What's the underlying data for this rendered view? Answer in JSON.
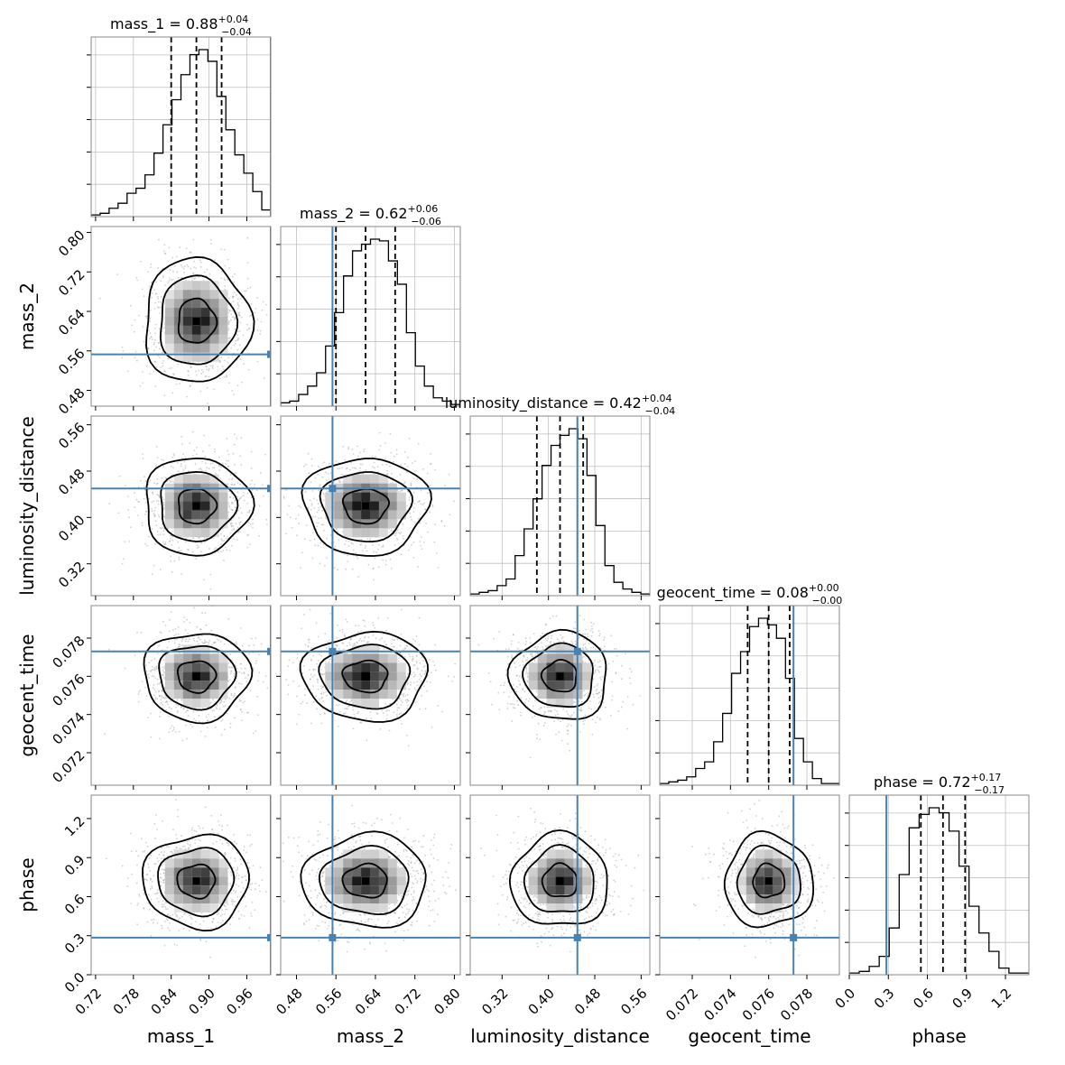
{
  "chart_data": {
    "type": "corner",
    "parameters": [
      "mass_1",
      "mass_2",
      "luminosity_distance",
      "geocent_time",
      "phase"
    ],
    "titles": [
      {
        "name": "mass_1",
        "value": "0.88",
        "plus": "+0.04",
        "minus": "−0.04"
      },
      {
        "name": "mass_2",
        "value": "0.62",
        "plus": "+0.06",
        "minus": "−0.06"
      },
      {
        "name": "luminosity_distance",
        "value": "0.42",
        "plus": "+0.04",
        "minus": "−0.04"
      },
      {
        "name": "geocent_time",
        "value": "0.08",
        "plus": "+0.00",
        "minus": "−0.00"
      },
      {
        "name": "phase",
        "value": "0.72",
        "plus": "+0.17",
        "minus": "−0.17"
      }
    ],
    "ranges": [
      [
        0.713,
        0.998
      ],
      [
        0.448,
        0.812
      ],
      [
        0.265,
        0.575
      ],
      [
        0.0703,
        0.0797
      ],
      [
        0.0,
        1.38
      ]
    ],
    "ticks": [
      [
        "0.72",
        "0.78",
        "0.84",
        "0.90",
        "0.96"
      ],
      [
        "0.48",
        "0.56",
        "0.64",
        "0.72",
        "0.80"
      ],
      [
        "0.32",
        "0.40",
        "0.48",
        "0.56"
      ],
      [
        "0.072",
        "0.074",
        "0.076",
        "0.078"
      ],
      [
        "0.0",
        "0.3",
        "0.6",
        "0.9",
        "1.2"
      ]
    ],
    "tick_values": [
      [
        0.72,
        0.78,
        0.84,
        0.9,
        0.96
      ],
      [
        0.48,
        0.56,
        0.64,
        0.72,
        0.8
      ],
      [
        0.32,
        0.4,
        0.48,
        0.56
      ],
      [
        0.072,
        0.074,
        0.076,
        0.078
      ],
      [
        0.0,
        0.3,
        0.6,
        0.9,
        1.2
      ]
    ],
    "truths": [
      0.998,
      0.553,
      0.45,
      0.0773,
      0.285
    ],
    "medians": [
      0.88,
      0.62,
      0.42,
      0.076,
      0.72
    ],
    "quantiles_16": [
      0.84,
      0.56,
      0.38,
      0.0749,
      0.55
    ],
    "quantiles_84": [
      0.92,
      0.68,
      0.46,
      0.0771,
      0.89
    ],
    "histograms": [
      [
        0.01,
        0.02,
        0.05,
        0.08,
        0.14,
        0.17,
        0.25,
        0.38,
        0.55,
        0.7,
        0.85,
        0.97,
        1.0,
        0.93,
        0.72,
        0.52,
        0.37,
        0.26,
        0.15,
        0.04
      ],
      [
        0.02,
        0.03,
        0.07,
        0.12,
        0.2,
        0.36,
        0.56,
        0.78,
        0.93,
        0.97,
        1.0,
        0.99,
        0.87,
        0.73,
        0.44,
        0.24,
        0.12,
        0.05,
        0.03,
        0.01
      ],
      [
        0.01,
        0.02,
        0.03,
        0.06,
        0.1,
        0.24,
        0.4,
        0.58,
        0.78,
        0.9,
        0.96,
        1.0,
        0.94,
        0.72,
        0.42,
        0.18,
        0.08,
        0.04,
        0.02,
        0.01
      ],
      [
        0.01,
        0.02,
        0.03,
        0.05,
        0.1,
        0.14,
        0.26,
        0.43,
        0.67,
        0.8,
        0.95,
        1.0,
        0.96,
        0.88,
        0.64,
        0.28,
        0.14,
        0.04,
        0.01,
        0.01
      ],
      [
        0.01,
        0.02,
        0.05,
        0.11,
        0.28,
        0.6,
        0.88,
        0.96,
        1.0,
        0.97,
        0.86,
        0.65,
        0.41,
        0.25,
        0.14,
        0.04,
        0.01,
        0.01
      ]
    ],
    "colors": {
      "truth": "#4682b4",
      "hist": "#000000",
      "grid": "#bfbfbf",
      "scatter": "#9a9a9a"
    },
    "xlabels": [
      "mass_1",
      "mass_2",
      "luminosity_distance",
      "geocent_time",
      "phase"
    ],
    "ylabels": [
      "mass_2",
      "luminosity_distance",
      "geocent_time",
      "phase"
    ],
    "grid": true,
    "layout": "lower-triangle"
  }
}
